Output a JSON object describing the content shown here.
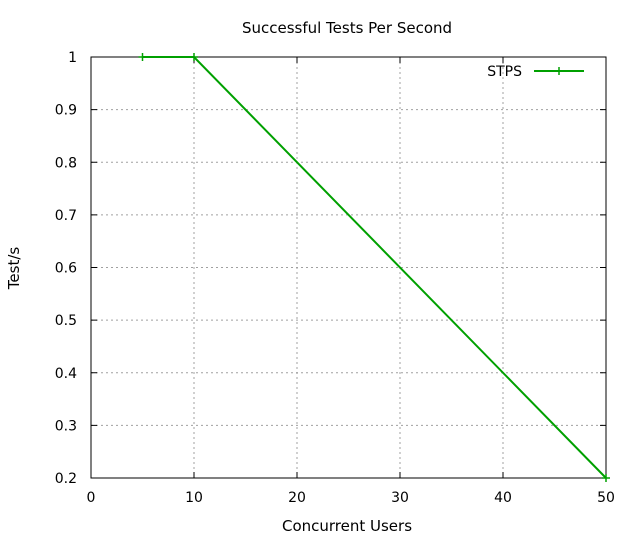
{
  "chart_data": {
    "type": "line",
    "title": "Successful Tests Per Second",
    "xlabel": "Concurrent Users",
    "ylabel": "Test/s",
    "xlim": [
      0,
      50
    ],
    "ylim": [
      0.2,
      1
    ],
    "xticks": [
      0,
      10,
      20,
      30,
      40,
      50
    ],
    "yticks": [
      0.2,
      0.3,
      0.4,
      0.5,
      0.6,
      0.7,
      0.8,
      0.9,
      1
    ],
    "xtick_labels": [
      "0",
      "10",
      "20",
      "30",
      "40",
      "50"
    ],
    "ytick_labels": [
      "0.2",
      "0.3",
      "0.4",
      "0.5",
      "0.6",
      "0.7",
      "0.8",
      "0.9",
      "1"
    ],
    "grid": true,
    "legend_position": "top-right",
    "series": [
      {
        "name": "STPS",
        "color": "#00a000",
        "marker": "plus",
        "x": [
          5,
          10,
          50
        ],
        "y": [
          1,
          1,
          0.2
        ]
      }
    ]
  }
}
